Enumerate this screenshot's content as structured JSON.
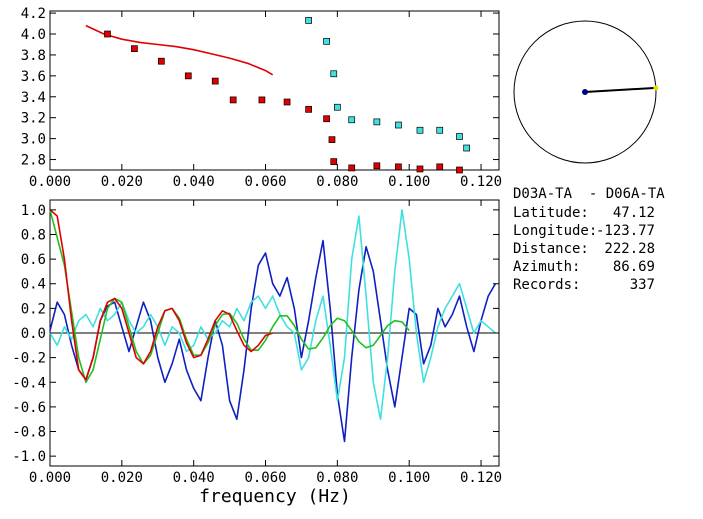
{
  "chart_data": [
    {
      "type": "scatter",
      "title": "",
      "xlabel": "",
      "ylabel": "",
      "xlim": [
        0.0,
        0.125
      ],
      "ylim": [
        2.7,
        4.22
      ],
      "x_ticks": [
        "0.000",
        "0.020",
        "0.040",
        "0.060",
        "0.080",
        "0.100",
        "0.120"
      ],
      "y_ticks": [
        "2.8",
        "3.0",
        "3.2",
        "3.4",
        "3.6",
        "3.8",
        "4.0",
        "4.2"
      ],
      "grid": false,
      "series": [
        {
          "kind": "line",
          "color": "#e00000",
          "x": [
            0.01,
            0.015,
            0.02,
            0.025,
            0.03,
            0.035,
            0.04,
            0.045,
            0.05,
            0.055,
            0.06,
            0.062
          ],
          "y": [
            4.08,
            4.0,
            3.95,
            3.92,
            3.9,
            3.88,
            3.85,
            3.81,
            3.77,
            3.72,
            3.65,
            3.61
          ]
        },
        {
          "kind": "markers",
          "color": "#e00000",
          "x": [
            0.016,
            0.0235,
            0.031,
            0.0385,
            0.046,
            0.051,
            0.059,
            0.066,
            0.072,
            0.077,
            0.0785,
            0.079,
            0.084,
            0.091,
            0.097,
            0.103,
            0.1085,
            0.114
          ],
          "y": [
            4.0,
            3.86,
            3.74,
            3.6,
            3.55,
            3.37,
            3.37,
            3.35,
            3.28,
            3.19,
            2.99,
            2.78,
            2.72,
            2.74,
            2.73,
            2.71,
            2.73,
            2.7
          ]
        },
        {
          "kind": "markers",
          "color": "#40e0e0",
          "x": [
            0.072,
            0.077,
            0.079,
            0.08,
            0.084,
            0.091,
            0.097,
            0.103,
            0.1085,
            0.114,
            0.116
          ],
          "y": [
            4.13,
            3.93,
            3.62,
            3.3,
            3.18,
            3.16,
            3.13,
            3.08,
            3.08,
            3.02,
            2.91
          ]
        }
      ]
    },
    {
      "type": "line",
      "title": "",
      "xlabel": "frequency (Hz)",
      "ylabel": "",
      "xlim": [
        0.0,
        0.125
      ],
      "ylim": [
        -1.08,
        1.08
      ],
      "x_ticks": [
        "0.000",
        "0.020",
        "0.040",
        "0.060",
        "0.080",
        "0.100",
        "0.120"
      ],
      "y_ticks": [
        "1.0",
        "0.8",
        "0.6",
        "0.4",
        "0.2",
        "0.0",
        "-0.2",
        "-0.4",
        "-0.6",
        "-0.8",
        "-1.0"
      ],
      "grid": false,
      "zero_line": true,
      "series": [
        {
          "color": "#1020c0",
          "x": [
            0.0,
            0.002,
            0.004,
            0.006,
            0.008,
            0.01,
            0.012,
            0.014,
            0.016,
            0.018,
            0.02,
            0.022,
            0.024,
            0.026,
            0.028,
            0.03,
            0.032,
            0.034,
            0.036,
            0.038,
            0.04,
            0.042,
            0.044,
            0.046,
            0.048,
            0.05,
            0.052,
            0.054,
            0.056,
            0.058,
            0.06,
            0.062,
            0.064,
            0.066,
            0.068,
            0.07,
            0.072,
            0.074,
            0.076,
            0.078,
            0.08,
            0.082,
            0.084,
            0.086,
            0.088,
            0.09,
            0.092,
            0.094,
            0.096,
            0.098,
            0.1,
            0.102,
            0.104,
            0.106,
            0.108,
            0.11,
            0.112,
            0.114,
            0.116,
            0.118,
            0.12,
            0.122,
            0.124
          ],
          "y": [
            0.02,
            0.25,
            0.15,
            -0.1,
            -0.3,
            -0.38,
            -0.2,
            0.1,
            0.22,
            0.25,
            0.05,
            -0.15,
            0.05,
            0.25,
            0.1,
            -0.2,
            -0.4,
            -0.25,
            -0.05,
            -0.3,
            -0.45,
            -0.55,
            -0.2,
            0.1,
            -0.1,
            -0.55,
            -0.7,
            -0.3,
            0.2,
            0.55,
            0.65,
            0.4,
            0.3,
            0.45,
            0.2,
            -0.2,
            0.1,
            0.45,
            0.75,
            0.2,
            -0.5,
            -0.88,
            -0.2,
            0.35,
            0.7,
            0.5,
            0.1,
            -0.3,
            -0.6,
            -0.2,
            0.2,
            0.15,
            -0.25,
            -0.1,
            0.2,
            0.05,
            0.15,
            0.3,
            0.05,
            -0.15,
            0.1,
            0.3,
            0.4
          ]
        },
        {
          "color": "#40e0e0",
          "x": [
            0.0,
            0.002,
            0.004,
            0.006,
            0.008,
            0.01,
            0.012,
            0.014,
            0.016,
            0.018,
            0.02,
            0.022,
            0.024,
            0.026,
            0.028,
            0.03,
            0.032,
            0.034,
            0.036,
            0.038,
            0.04,
            0.042,
            0.044,
            0.046,
            0.048,
            0.05,
            0.052,
            0.054,
            0.056,
            0.058,
            0.06,
            0.062,
            0.064,
            0.066,
            0.068,
            0.07,
            0.072,
            0.074,
            0.076,
            0.078,
            0.08,
            0.082,
            0.084,
            0.086,
            0.088,
            0.09,
            0.092,
            0.094,
            0.096,
            0.098,
            0.1,
            0.102,
            0.104,
            0.106,
            0.108,
            0.11,
            0.112,
            0.114,
            0.116,
            0.118,
            0.12,
            0.122,
            0.124
          ],
          "y": [
            0.0,
            -0.1,
            0.05,
            -0.05,
            0.1,
            0.15,
            0.05,
            0.2,
            0.1,
            0.15,
            0.25,
            0.1,
            0.0,
            0.05,
            0.15,
            0.05,
            -0.1,
            0.05,
            0.0,
            -0.15,
            -0.1,
            0.05,
            -0.05,
            0.0,
            0.1,
            0.05,
            0.2,
            0.1,
            0.25,
            0.3,
            0.2,
            0.3,
            0.15,
            0.05,
            0.0,
            -0.3,
            -0.2,
            0.1,
            0.3,
            -0.1,
            -0.55,
            -0.2,
            0.6,
            0.95,
            0.3,
            -0.4,
            -0.7,
            -0.2,
            0.5,
            1.0,
            0.6,
            0.0,
            -0.4,
            -0.2,
            0.05,
            0.2,
            0.3,
            0.4,
            0.2,
            0.0,
            0.1,
            0.05,
            0.0
          ]
        },
        {
          "color": "#20c020",
          "x": [
            0.0,
            0.004,
            0.008,
            0.01,
            0.012,
            0.014,
            0.016,
            0.018,
            0.02,
            0.022,
            0.024,
            0.026,
            0.028,
            0.03,
            0.032,
            0.034,
            0.036,
            0.038,
            0.04,
            0.042,
            0.044,
            0.046,
            0.048,
            0.05,
            0.052,
            0.054,
            0.056,
            0.058,
            0.06,
            0.062,
            0.064,
            0.066,
            0.068,
            0.07,
            0.072,
            0.074,
            0.076,
            0.078,
            0.08,
            0.082,
            0.084,
            0.086,
            0.088,
            0.09,
            0.092,
            0.094,
            0.096,
            0.098,
            0.1
          ],
          "y": [
            1.0,
            0.55,
            -0.2,
            -0.4,
            -0.3,
            -0.05,
            0.2,
            0.28,
            0.25,
            0.05,
            -0.15,
            -0.25,
            -0.18,
            0.0,
            0.18,
            0.2,
            0.12,
            -0.05,
            -0.18,
            -0.18,
            -0.08,
            0.06,
            0.15,
            0.16,
            0.08,
            -0.05,
            -0.14,
            -0.14,
            -0.06,
            0.05,
            0.14,
            0.14,
            0.06,
            -0.05,
            -0.13,
            -0.12,
            -0.04,
            0.06,
            0.12,
            0.1,
            0.02,
            -0.07,
            -0.12,
            -0.1,
            -0.02,
            0.06,
            0.1,
            0.09,
            0.02
          ]
        },
        {
          "color": "#e00000",
          "x": [
            0.0,
            0.002,
            0.004,
            0.006,
            0.008,
            0.01,
            0.012,
            0.014,
            0.016,
            0.018,
            0.02,
            0.022,
            0.024,
            0.026,
            0.028,
            0.03,
            0.032,
            0.034,
            0.036,
            0.038,
            0.04,
            0.042,
            0.044,
            0.046,
            0.048,
            0.05,
            0.052,
            0.054,
            0.056,
            0.058,
            0.06,
            0.062
          ],
          "y": [
            1.0,
            0.95,
            0.6,
            0.1,
            -0.3,
            -0.38,
            -0.2,
            0.1,
            0.25,
            0.28,
            0.2,
            0.0,
            -0.2,
            -0.25,
            -0.15,
            0.05,
            0.18,
            0.2,
            0.1,
            -0.08,
            -0.2,
            -0.18,
            -0.05,
            0.1,
            0.18,
            0.15,
            0.02,
            -0.1,
            -0.15,
            -0.1,
            -0.02,
            0.0
          ]
        }
      ]
    }
  ],
  "polar": {
    "azimuth_deg": 86.69,
    "distance_fraction": 1.0,
    "center_color": "#000080",
    "end_color": "#e0e000"
  },
  "info": {
    "station_pair": "D03A-TA  - D06A-TA",
    "rows": [
      {
        "label": "Latitude:",
        "value": "47.12"
      },
      {
        "label": "Longitude:",
        "value": "-123.77"
      },
      {
        "label": "Distance:",
        "value": "222.28"
      },
      {
        "label": "Azimuth:",
        "value": "86.69"
      },
      {
        "label": "Records:",
        "value": "337"
      }
    ]
  }
}
